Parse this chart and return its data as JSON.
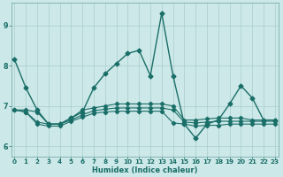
{
  "xlabel": "Humidex (Indice chaleur)",
  "background_color": "#cce8e8",
  "grid_color": "#aacece",
  "line_color": "#1a6e68",
  "xlim": [
    -0.3,
    23.3
  ],
  "ylim": [
    5.75,
    9.55
  ],
  "yticks": [
    6,
    7,
    8,
    9
  ],
  "xticks": [
    0,
    1,
    2,
    3,
    4,
    5,
    6,
    7,
    8,
    9,
    10,
    11,
    12,
    13,
    14,
    15,
    16,
    17,
    18,
    19,
    20,
    21,
    22,
    23
  ],
  "series": {
    "main": [
      8.15,
      7.45,
      6.9,
      6.55,
      6.55,
      6.7,
      6.85,
      7.45,
      7.8,
      8.05,
      8.3,
      8.38,
      7.75,
      9.3,
      7.75,
      6.55,
      6.2,
      6.55,
      6.65,
      7.05,
      7.5,
      7.2,
      6.65,
      6.65
    ],
    "line2": [
      6.9,
      6.9,
      6.85,
      6.55,
      6.55,
      6.7,
      6.9,
      6.95,
      7.0,
      7.05,
      7.05,
      7.05,
      7.05,
      7.05,
      7.0,
      6.65,
      6.65,
      6.68,
      6.7,
      6.7,
      6.7,
      6.65,
      6.65,
      6.65
    ],
    "line3": [
      6.9,
      6.85,
      6.6,
      6.55,
      6.55,
      6.65,
      6.78,
      6.88,
      6.92,
      6.95,
      6.95,
      6.95,
      6.95,
      6.95,
      6.9,
      6.6,
      6.58,
      6.6,
      6.62,
      6.62,
      6.62,
      6.62,
      6.62,
      6.62
    ],
    "line4": [
      6.9,
      6.85,
      6.55,
      6.5,
      6.5,
      6.62,
      6.72,
      6.82,
      6.85,
      6.87,
      6.87,
      6.87,
      6.87,
      6.87,
      6.58,
      6.55,
      6.5,
      6.52,
      6.52,
      6.55,
      6.55,
      6.55,
      6.55,
      6.55
    ]
  }
}
